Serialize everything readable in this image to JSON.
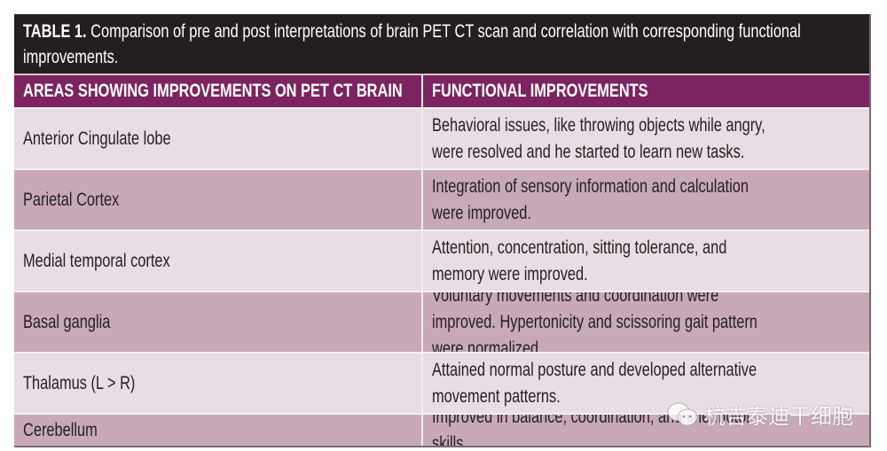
{
  "caption": {
    "label": "TABLE 1.",
    "text": " Comparison of pre and post interpretations of brain PET CT scan and correlation with corresponding functional improvements."
  },
  "columns": [
    "AREAS SHOWING IMPROVEMENTS ON PET CT BRAIN",
    "FUNCTIONAL IMPROVEMENTS"
  ],
  "rows": [
    {
      "area": "Anterior Cingulate lobe",
      "improvement": "Behavioral issues, like throwing objects while angry, were resolved and he started to learn new tasks."
    },
    {
      "area": "Parietal Cortex",
      "improvement": "Integration of sensory information and calculation were improved."
    },
    {
      "area": "Medial temporal cortex",
      "improvement": "Attention, concentration, sitting tolerance, and memory were improved."
    },
    {
      "area": "Basal ganglia",
      "improvement": "Voluntary movements and coordination were improved. Hypertonicity and scissoring gait pattern were normalized."
    },
    {
      "area": "Thalamus (L > R)",
      "improvement": "Attained normal posture and developed alternative movement patterns."
    },
    {
      "area": "Cerebellum",
      "improvement": "Improved in balance, coordination, and fine motor skills."
    }
  ],
  "watermark": {
    "icon": "wechat-icon",
    "text": "杭吉泰迪干细胞"
  },
  "colors": {
    "caption_bg": "#231f20",
    "header_bg": "#7b2460",
    "row_light": "#e8dde4",
    "row_dark": "#c8a9b9"
  }
}
